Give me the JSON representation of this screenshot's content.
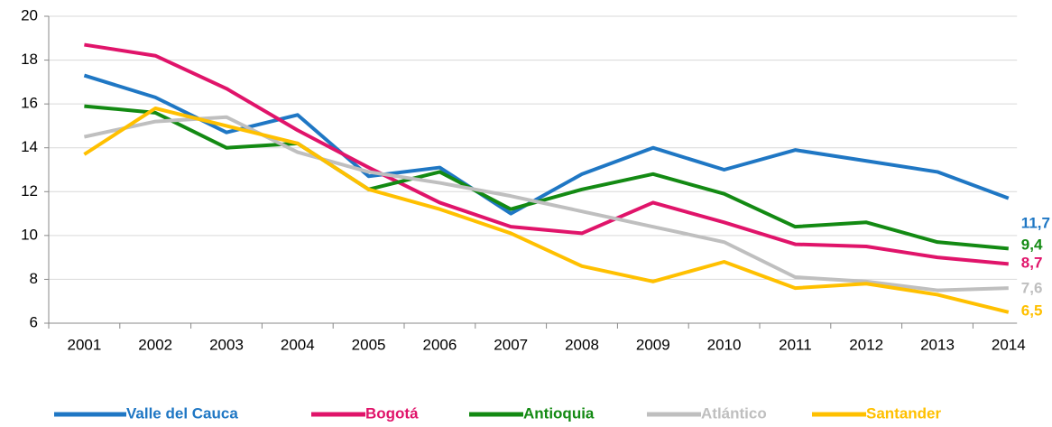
{
  "chart_data": {
    "type": "line",
    "categories": [
      "2001",
      "2002",
      "2003",
      "2004",
      "2005",
      "2006",
      "2007",
      "2008",
      "2009",
      "2010",
      "2011",
      "2012",
      "2013",
      "2014"
    ],
    "series": [
      {
        "name": "Valle del Cauca",
        "color": "#1f77c4",
        "values": [
          17.3,
          16.3,
          14.7,
          15.5,
          12.7,
          13.1,
          11.0,
          12.8,
          14.0,
          13.0,
          13.9,
          13.4,
          12.9,
          11.7
        ],
        "value_labels": [
          null,
          null,
          null,
          null,
          null,
          null,
          null,
          null,
          null,
          null,
          null,
          null,
          null,
          "11,7"
        ]
      },
      {
        "name": "Bogotá",
        "color": "#e0146a",
        "values": [
          18.7,
          18.2,
          16.7,
          14.8,
          13.1,
          11.5,
          10.4,
          10.1,
          11.5,
          10.6,
          9.6,
          9.5,
          9.0,
          8.7
        ],
        "value_labels": [
          null,
          null,
          null,
          null,
          null,
          null,
          null,
          null,
          null,
          null,
          null,
          null,
          null,
          "8,7"
        ]
      },
      {
        "name": "Antioquia",
        "color": "#138a13",
        "values": [
          15.9,
          15.6,
          14.0,
          14.2,
          12.1,
          12.9,
          11.2,
          12.1,
          12.8,
          11.9,
          10.4,
          10.6,
          9.7,
          9.4
        ],
        "value_labels": [
          null,
          null,
          null,
          null,
          null,
          null,
          null,
          null,
          null,
          null,
          null,
          null,
          null,
          "9,4"
        ]
      },
      {
        "name": "Atlántico",
        "color": "#bfbfbf",
        "values": [
          14.5,
          15.2,
          15.4,
          13.8,
          12.9,
          12.4,
          11.8,
          11.1,
          10.4,
          9.7,
          8.1,
          7.9,
          7.5,
          7.6
        ],
        "value_labels": [
          null,
          null,
          null,
          null,
          null,
          null,
          null,
          null,
          null,
          null,
          null,
          null,
          null,
          "7,6"
        ]
      },
      {
        "name": "Santander",
        "color": "#ffc000",
        "values": [
          13.7,
          15.8,
          15.0,
          14.2,
          12.1,
          11.2,
          10.1,
          8.6,
          7.9,
          8.8,
          7.6,
          7.8,
          7.3,
          6.5
        ],
        "value_labels": [
          null,
          null,
          null,
          null,
          null,
          null,
          null,
          null,
          null,
          null,
          null,
          null,
          null,
          "6,5"
        ]
      }
    ],
    "ylim": [
      6,
      20
    ],
    "yticks": [
      6,
      8,
      10,
      12,
      14,
      16,
      18,
      20
    ],
    "grid": true,
    "legend": "bottom"
  }
}
